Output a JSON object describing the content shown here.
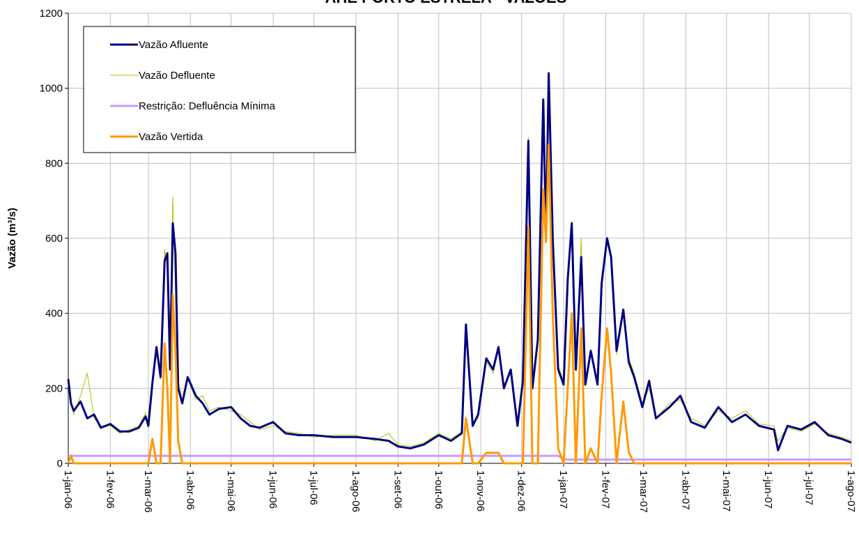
{
  "chart_data": {
    "type": "line",
    "title": "AHE  PORTO ESTRELA - VAZÕES",
    "y_label": "Vazão (m³/s)",
    "x": [
      "2006-01-01",
      "2006-01-03",
      "2006-01-05",
      "2006-01-10",
      "2006-01-15",
      "2006-01-20",
      "2006-01-25",
      "2006-02-01",
      "2006-02-08",
      "2006-02-15",
      "2006-02-22",
      "2006-02-27",
      "2006-03-01",
      "2006-03-04",
      "2006-03-07",
      "2006-03-10",
      "2006-03-13",
      "2006-03-15",
      "2006-03-17",
      "2006-03-19",
      "2006-03-21",
      "2006-03-23",
      "2006-03-26",
      "2006-03-30",
      "2006-04-05",
      "2006-04-10",
      "2006-04-15",
      "2006-04-22",
      "2006-05-01",
      "2006-05-08",
      "2006-05-15",
      "2006-05-22",
      "2006-06-01",
      "2006-06-10",
      "2006-06-20",
      "2006-07-01",
      "2006-07-15",
      "2006-08-01",
      "2006-08-15",
      "2006-08-25",
      "2006-09-01",
      "2006-09-10",
      "2006-09-20",
      "2006-10-01",
      "2006-10-10",
      "2006-10-18",
      "2006-10-21",
      "2006-10-26",
      "2006-10-30",
      "2006-11-05",
      "2006-11-10",
      "2006-11-14",
      "2006-11-18",
      "2006-11-23",
      "2006-11-28",
      "2006-12-02",
      "2006-12-06",
      "2006-12-09",
      "2006-12-13",
      "2006-12-17",
      "2006-12-19",
      "2006-12-21",
      "2006-12-24",
      "2006-12-28",
      "2007-01-01",
      "2007-01-04",
      "2007-01-07",
      "2007-01-10",
      "2007-01-14",
      "2007-01-17",
      "2007-01-21",
      "2007-01-26",
      "2007-01-29",
      "2007-02-02",
      "2007-02-05",
      "2007-02-09",
      "2007-02-14",
      "2007-02-18",
      "2007-02-22",
      "2007-02-28",
      "2007-03-05",
      "2007-03-10",
      "2007-03-20",
      "2007-03-28",
      "2007-04-05",
      "2007-04-15",
      "2007-04-25",
      "2007-05-05",
      "2007-05-15",
      "2007-05-25",
      "2007-06-05",
      "2007-06-08",
      "2007-06-15",
      "2007-06-25",
      "2007-07-05",
      "2007-07-15",
      "2007-07-25",
      "2007-08-01"
    ],
    "series": [
      {
        "name": "Vazão Afluente",
        "color": "#000080",
        "width": 3,
        "values": [
          225,
          160,
          140,
          165,
          120,
          130,
          95,
          105,
          85,
          85,
          95,
          125,
          100,
          215,
          310,
          230,
          540,
          560,
          250,
          640,
          560,
          200,
          160,
          230,
          180,
          160,
          130,
          145,
          150,
          120,
          100,
          95,
          110,
          80,
          75,
          75,
          70,
          70,
          65,
          60,
          45,
          40,
          50,
          75,
          60,
          80,
          370,
          100,
          130,
          280,
          250,
          310,
          200,
          250,
          100,
          220,
          860,
          200,
          330,
          970,
          600,
          1040,
          600,
          250,
          210,
          490,
          640,
          250,
          550,
          210,
          300,
          210,
          480,
          600,
          550,
          300,
          410,
          270,
          230,
          150,
          220,
          120,
          150,
          180,
          110,
          95,
          150,
          110,
          130,
          100,
          90,
          35,
          100,
          90,
          110,
          75,
          65,
          55
        ]
      },
      {
        "name": "Vazão Defluente",
        "color": "#99cc00",
        "width": 1,
        "values": [
          180,
          170,
          130,
          180,
          240,
          120,
          100,
          100,
          80,
          90,
          100,
          135,
          95,
          210,
          300,
          225,
          570,
          520,
          260,
          710,
          450,
          220,
          170,
          225,
          170,
          180,
          140,
          150,
          140,
          130,
          110,
          90,
          100,
          85,
          80,
          70,
          75,
          75,
          60,
          80,
          50,
          45,
          55,
          80,
          65,
          85,
          360,
          110,
          120,
          270,
          240,
          300,
          210,
          240,
          110,
          230,
          870,
          210,
          320,
          960,
          620,
          1040,
          620,
          260,
          220,
          500,
          645,
          260,
          600,
          230,
          290,
          220,
          470,
          590,
          545,
          290,
          410,
          280,
          240,
          160,
          200,
          120,
          160,
          170,
          120,
          100,
          140,
          120,
          140,
          105,
          100,
          60,
          95,
          85,
          105,
          80,
          70,
          60
        ]
      },
      {
        "name": "Restrição: Defluência Mínima",
        "color": "#cc99ff",
        "width": 3,
        "values": [
          20,
          20,
          20,
          20,
          20,
          20,
          20,
          20,
          20,
          20,
          20,
          20,
          20,
          20,
          20,
          20,
          20,
          20,
          20,
          20,
          20,
          20,
          20,
          20,
          20,
          20,
          20,
          20,
          20,
          20,
          20,
          20,
          20,
          20,
          20,
          20,
          20,
          20,
          20,
          20,
          20,
          20,
          20,
          20,
          20,
          20,
          20,
          20,
          20,
          20,
          20,
          20,
          20,
          20,
          20,
          20,
          20,
          20,
          20,
          20,
          20,
          20,
          20,
          20,
          10,
          10,
          10,
          10,
          10,
          10,
          10,
          10,
          10,
          10,
          10,
          10,
          10,
          10,
          10,
          10,
          10,
          10,
          10,
          10,
          10,
          10,
          10,
          10,
          10,
          10,
          10,
          10,
          10,
          10,
          10,
          10,
          10,
          10
        ]
      },
      {
        "name": "Vazão Vertida",
        "color": "#ff9900",
        "width": 3,
        "values": [
          0,
          20,
          0,
          0,
          0,
          0,
          0,
          0,
          0,
          0,
          0,
          0,
          0,
          65,
          0,
          0,
          320,
          200,
          0,
          450,
          300,
          60,
          0,
          0,
          0,
          0,
          0,
          0,
          0,
          0,
          0,
          0,
          0,
          0,
          0,
          0,
          0,
          0,
          0,
          0,
          0,
          0,
          0,
          0,
          0,
          0,
          120,
          0,
          0,
          28,
          28,
          28,
          0,
          0,
          0,
          0,
          630,
          0,
          0,
          730,
          590,
          850,
          400,
          40,
          0,
          200,
          400,
          0,
          360,
          0,
          40,
          0,
          180,
          360,
          240,
          0,
          165,
          30,
          0,
          0,
          0,
          0,
          0,
          0,
          0,
          0,
          0,
          0,
          0,
          0,
          0,
          0,
          0,
          0,
          0,
          0,
          0,
          0
        ]
      }
    ],
    "ylim": [
      0,
      1200
    ],
    "yticks": [
      0,
      200,
      400,
      600,
      800,
      1000,
      1200
    ],
    "xlim": [
      "2006-01-01",
      "2007-08-01"
    ],
    "xticks": [
      {
        "value": "2006-01-01",
        "label": "1-jan-06"
      },
      {
        "value": "2006-02-01",
        "label": "1-fev-06"
      },
      {
        "value": "2006-03-01",
        "label": "1-mar-06"
      },
      {
        "value": "2006-04-01",
        "label": "1-abr-06"
      },
      {
        "value": "2006-05-01",
        "label": "1-mai-06"
      },
      {
        "value": "2006-06-01",
        "label": "1-jun-06"
      },
      {
        "value": "2006-07-01",
        "label": "1-jul-06"
      },
      {
        "value": "2006-08-01",
        "label": "1-ago-06"
      },
      {
        "value": "2006-09-01",
        "label": "1-set-06"
      },
      {
        "value": "2006-10-01",
        "label": "1-out-06"
      },
      {
        "value": "2006-11-01",
        "label": "1-nov-06"
      },
      {
        "value": "2006-12-01",
        "label": "1-dez-06"
      },
      {
        "value": "2007-01-01",
        "label": "1-jan-07"
      },
      {
        "value": "2007-02-01",
        "label": "1-fev-07"
      },
      {
        "value": "2007-03-01",
        "label": "1-mar-07"
      },
      {
        "value": "2007-04-01",
        "label": "1-abr-07"
      },
      {
        "value": "2007-05-01",
        "label": "1-mai-07"
      },
      {
        "value": "2007-06-01",
        "label": "1-jun-07"
      },
      {
        "value": "2007-07-01",
        "label": "1-jul-07"
      },
      {
        "value": "2007-08-01",
        "label": "1-ago-07"
      }
    ],
    "grid": true,
    "legend": "upper left"
  }
}
